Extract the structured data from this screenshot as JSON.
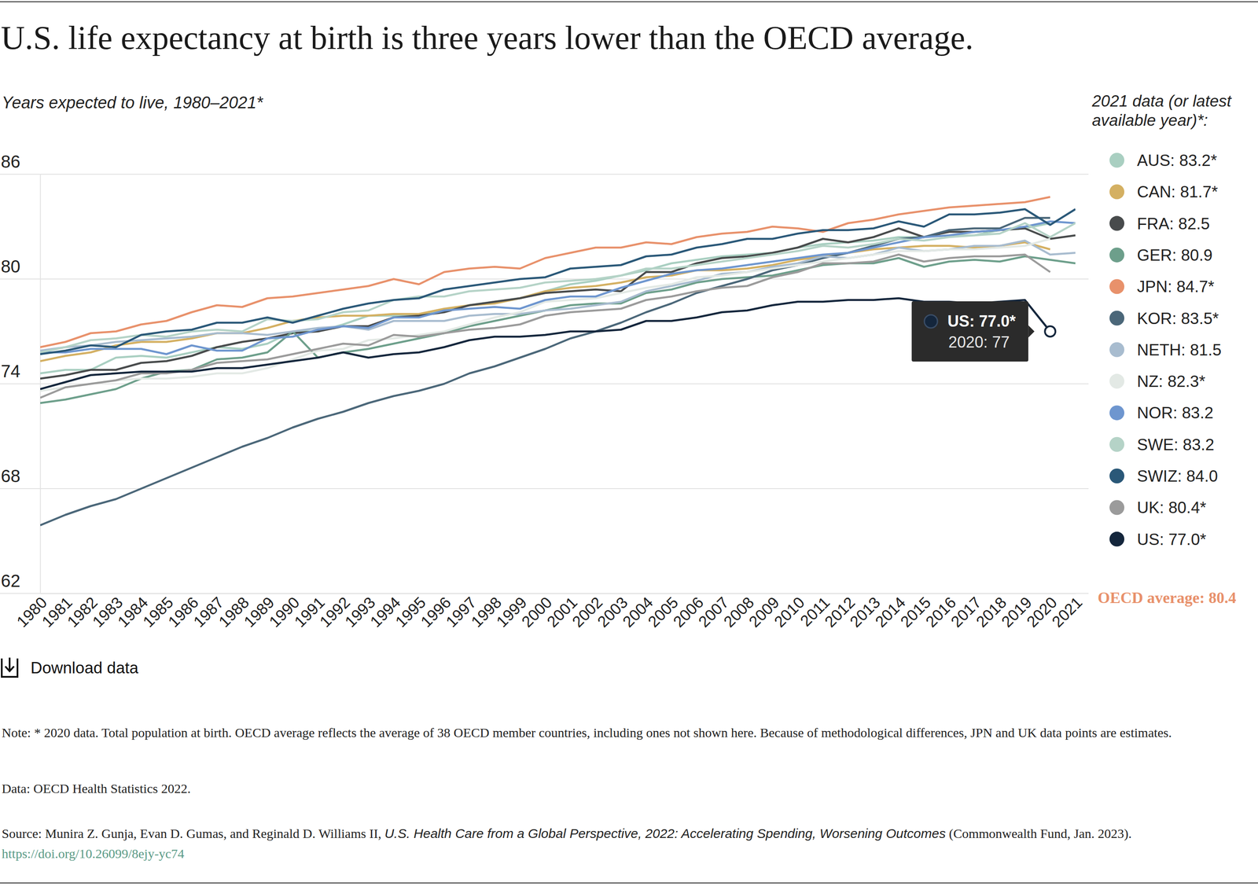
{
  "chart_data": {
    "type": "line",
    "title": "U.S. life expectancy at birth is three years lower than the OECD average.",
    "subtitle": "Years expected to live, 1980–2021*",
    "legend_title": "2021 data (or latest available year)*:",
    "oecd_average_label": "OECD average: 80.4",
    "download_label": "Download data",
    "legend": "right",
    "grid": true,
    "x": [
      1980,
      1981,
      1982,
      1983,
      1984,
      1985,
      1986,
      1987,
      1988,
      1989,
      1990,
      1991,
      1992,
      1993,
      1994,
      1995,
      1996,
      1997,
      1998,
      1999,
      2000,
      2001,
      2002,
      2003,
      2004,
      2005,
      2006,
      2007,
      2008,
      2009,
      2010,
      2011,
      2012,
      2013,
      2014,
      2015,
      2016,
      2017,
      2018,
      2019,
      2020,
      2021
    ],
    "xlim": [
      1980,
      2021
    ],
    "xticks": [
      1980,
      1981,
      1982,
      1983,
      1984,
      1985,
      1986,
      1987,
      1988,
      1989,
      1990,
      1991,
      1992,
      1993,
      1994,
      1995,
      1996,
      1997,
      1998,
      1999,
      2000,
      2001,
      2002,
      2003,
      2004,
      2005,
      2006,
      2007,
      2008,
      2009,
      2010,
      2011,
      2012,
      2013,
      2014,
      2015,
      2016,
      2017,
      2018,
      2019,
      2020,
      2021
    ],
    "ylim": [
      62,
      86
    ],
    "yticks": [
      62,
      68,
      74,
      80,
      86
    ],
    "series": [
      {
        "name": "AUS: 83.2*",
        "color": "#a9cfc1",
        "values": [
          74.6,
          74.8,
          74.8,
          75.5,
          75.6,
          75.5,
          75.8,
          76.1,
          76.0,
          76.3,
          77.0,
          77.0,
          77.4,
          77.9,
          77.9,
          77.9,
          78.2,
          78.5,
          78.7,
          78.9,
          79.3,
          79.7,
          79.9,
          80.2,
          80.5,
          80.9,
          81.1,
          81.3,
          81.4,
          81.5,
          81.8,
          82.0,
          82.1,
          82.2,
          82.4,
          82.4,
          82.5,
          82.5,
          82.8,
          82.9,
          83.2,
          null
        ]
      },
      {
        "name": "CAN: 81.7*",
        "color": "#d4b062",
        "values": [
          75.3,
          75.6,
          75.8,
          76.2,
          76.4,
          76.4,
          76.6,
          76.9,
          76.9,
          77.2,
          77.6,
          77.8,
          77.9,
          77.9,
          78.0,
          78.0,
          78.3,
          78.5,
          78.6,
          78.9,
          79.3,
          79.5,
          79.6,
          79.8,
          80.1,
          80.2,
          80.5,
          80.5,
          80.6,
          80.8,
          81.1,
          81.3,
          81.5,
          81.7,
          81.8,
          81.9,
          81.9,
          81.8,
          81.9,
          82.1,
          81.7,
          null
        ]
      },
      {
        "name": "FRA: 82.5",
        "color": "#484b4c",
        "values": [
          74.3,
          74.5,
          74.8,
          74.8,
          75.2,
          75.3,
          75.6,
          76.1,
          76.4,
          76.6,
          76.9,
          77.0,
          77.3,
          77.3,
          77.8,
          77.9,
          78.1,
          78.5,
          78.7,
          78.9,
          79.2,
          79.3,
          79.4,
          79.3,
          80.4,
          80.4,
          80.9,
          81.2,
          81.3,
          81.5,
          81.8,
          82.3,
          82.1,
          82.4,
          82.9,
          82.4,
          82.7,
          82.7,
          82.8,
          82.9,
          82.3,
          82.5
        ]
      },
      {
        "name": "GER: 80.9",
        "color": "#6d9f8b",
        "values": [
          72.9,
          73.1,
          73.4,
          73.7,
          74.3,
          74.7,
          74.8,
          75.4,
          75.5,
          75.8,
          77.0,
          75.5,
          75.8,
          76.0,
          76.3,
          76.6,
          76.9,
          77.3,
          77.6,
          77.9,
          78.2,
          78.5,
          78.6,
          78.6,
          79.2,
          79.4,
          79.8,
          80.0,
          80.1,
          80.2,
          80.5,
          80.8,
          80.9,
          80.9,
          81.2,
          80.7,
          81.0,
          81.1,
          81.0,
          81.3,
          81.1,
          80.9
        ]
      },
      {
        "name": "JPN: 84.7*",
        "color": "#e8916b",
        "values": [
          76.1,
          76.4,
          76.9,
          77.0,
          77.4,
          77.6,
          78.1,
          78.5,
          78.4,
          78.9,
          79.0,
          79.2,
          79.4,
          79.6,
          80.0,
          79.7,
          80.4,
          80.6,
          80.7,
          80.6,
          81.2,
          81.5,
          81.8,
          81.8,
          82.1,
          82.0,
          82.4,
          82.6,
          82.7,
          83.0,
          82.9,
          82.7,
          83.2,
          83.4,
          83.7,
          83.9,
          84.1,
          84.2,
          84.3,
          84.4,
          84.7,
          null
        ]
      },
      {
        "name": "KOR: 83.5*",
        "color": "#4b6779",
        "values": [
          65.9,
          66.5,
          67.0,
          67.4,
          68.0,
          68.6,
          69.2,
          69.8,
          70.4,
          70.9,
          71.5,
          72.0,
          72.4,
          72.9,
          73.3,
          73.6,
          74.0,
          74.6,
          75.0,
          75.5,
          76.0,
          76.6,
          77.0,
          77.5,
          78.1,
          78.6,
          79.2,
          79.6,
          80.0,
          80.5,
          80.8,
          81.2,
          81.5,
          81.9,
          82.3,
          82.4,
          82.8,
          82.9,
          82.9,
          83.5,
          83.5,
          null
        ]
      },
      {
        "name": "NETH: 81.5",
        "color": "#a8bccf",
        "values": [
          75.9,
          76.1,
          76.2,
          76.4,
          76.5,
          76.6,
          76.7,
          76.9,
          76.9,
          76.8,
          77.0,
          77.2,
          77.3,
          77.1,
          77.6,
          77.6,
          77.6,
          77.9,
          78.0,
          78.0,
          78.2,
          78.3,
          78.5,
          78.7,
          79.3,
          79.6,
          79.9,
          80.3,
          80.4,
          80.7,
          80.9,
          81.3,
          81.2,
          81.4,
          81.8,
          81.6,
          81.7,
          81.9,
          81.9,
          82.2,
          81.4,
          81.5
        ]
      },
      {
        "name": "NZ: 82.3*",
        "color": "#e3e9e5",
        "values": [
          73.6,
          73.8,
          74.0,
          74.2,
          74.3,
          74.3,
          74.4,
          74.6,
          74.6,
          74.9,
          75.4,
          75.9,
          76.0,
          76.5,
          76.6,
          76.8,
          77.0,
          77.4,
          77.8,
          78.1,
          78.7,
          78.8,
          78.9,
          79.2,
          79.5,
          79.7,
          80.1,
          80.2,
          80.4,
          80.6,
          80.8,
          81.0,
          81.2,
          81.4,
          81.6,
          81.6,
          81.7,
          81.7,
          81.8,
          81.9,
          82.3,
          null
        ]
      },
      {
        "name": "NOR: 83.2",
        "color": "#6e96cf",
        "values": [
          75.8,
          75.8,
          76.0,
          76.0,
          76.0,
          75.7,
          76.2,
          75.9,
          75.9,
          76.6,
          76.7,
          77.1,
          77.3,
          77.2,
          77.8,
          77.8,
          78.2,
          78.3,
          78.4,
          78.3,
          78.8,
          79.0,
          79.0,
          79.5,
          79.9,
          80.3,
          80.5,
          80.6,
          80.8,
          81.0,
          81.2,
          81.4,
          81.5,
          81.8,
          82.1,
          82.4,
          82.5,
          82.7,
          82.8,
          83.0,
          83.3,
          83.2
        ]
      },
      {
        "name": "SWE: 83.2",
        "color": "#b5d3c7",
        "values": [
          75.8,
          76.1,
          76.5,
          76.6,
          76.8,
          76.7,
          77.0,
          77.1,
          77.0,
          77.7,
          77.6,
          77.7,
          78.1,
          78.2,
          78.8,
          79.0,
          79.0,
          79.3,
          79.4,
          79.5,
          79.8,
          79.9,
          80.0,
          80.2,
          80.6,
          80.6,
          80.8,
          81.0,
          81.2,
          81.4,
          81.6,
          81.9,
          81.8,
          82.0,
          82.3,
          82.2,
          82.4,
          82.5,
          82.6,
          83.2,
          82.4,
          83.2
        ]
      },
      {
        "name": "SWIZ: 84.0",
        "color": "#2a5878",
        "values": [
          75.7,
          75.9,
          76.2,
          76.1,
          76.8,
          77.0,
          77.1,
          77.5,
          77.5,
          77.8,
          77.5,
          77.9,
          78.3,
          78.6,
          78.8,
          78.9,
          79.4,
          79.6,
          79.8,
          80.0,
          80.1,
          80.6,
          80.7,
          80.8,
          81.3,
          81.4,
          81.8,
          82.0,
          82.3,
          82.3,
          82.6,
          82.8,
          82.8,
          82.9,
          83.3,
          83.0,
          83.7,
          83.7,
          83.8,
          84.0,
          83.1,
          84.0
        ]
      },
      {
        "name": "UK: 80.4*",
        "color": "#9b9b9b",
        "values": [
          73.2,
          73.8,
          74.0,
          74.2,
          74.6,
          74.6,
          74.8,
          75.2,
          75.3,
          75.4,
          75.7,
          76.0,
          76.3,
          76.2,
          76.8,
          76.7,
          76.9,
          77.1,
          77.2,
          77.4,
          77.9,
          78.1,
          78.2,
          78.3,
          78.8,
          79.0,
          79.3,
          79.5,
          79.6,
          80.1,
          80.4,
          80.9,
          80.9,
          81.0,
          81.4,
          81.0,
          81.2,
          81.3,
          81.3,
          81.4,
          80.4,
          null
        ]
      },
      {
        "name": "US: 77.0*",
        "color": "#14263c",
        "values": [
          73.7,
          74.1,
          74.5,
          74.6,
          74.7,
          74.7,
          74.7,
          74.9,
          74.9,
          75.1,
          75.3,
          75.5,
          75.8,
          75.5,
          75.7,
          75.8,
          76.1,
          76.5,
          76.7,
          76.7,
          76.8,
          77.0,
          77.0,
          77.1,
          77.6,
          77.6,
          77.8,
          78.1,
          78.2,
          78.5,
          78.7,
          78.7,
          78.8,
          78.8,
          78.9,
          78.7,
          78.7,
          78.6,
          78.7,
          78.8,
          77.0,
          null
        ]
      }
    ],
    "annotation": {
      "title": "US: 77.0*",
      "text": "2020: 77",
      "x": 2020,
      "y": 77
    },
    "notes": [
      "Note: * 2020 data. Total population at birth. OECD average reflects the average of 38 OECD member countries, including ones not shown here. Because of methodological differences, JPN and UK data points are estimates.",
      "Data: OECD Health Statistics 2022."
    ],
    "source": {
      "prefix": "Source: Munira Z. Gunja, Evan D. Gumas, and Reginald D. Williams II, ",
      "title": "U.S. Health Care from a Global Perspective, 2022: Accelerating Spending, Worsening Outcomes",
      "suffix": " (Commonwealth Fund, Jan. 2023). ",
      "url": "https://doi.org/10.26099/8ejy-yc74"
    }
  }
}
